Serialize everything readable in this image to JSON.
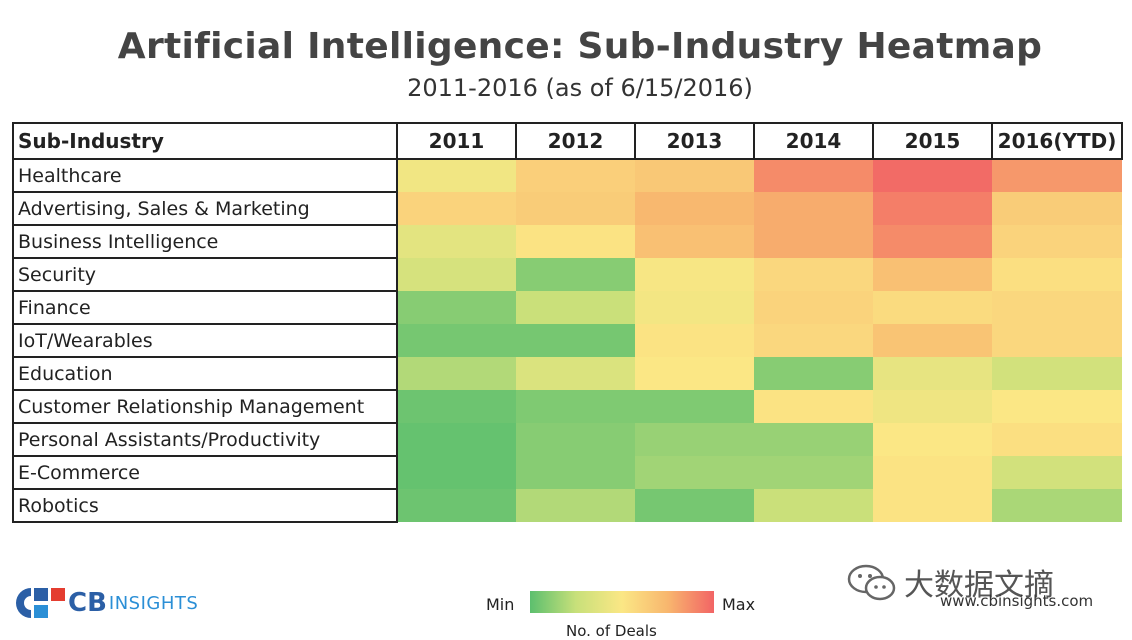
{
  "chart_data": {
    "type": "heatmap",
    "title": "Artificial Intelligence: Sub-Industry Heatmap",
    "subtitle": "2011-2016 (as of 6/15/2016)",
    "row_header": "Sub-Industry",
    "columns": [
      "2011",
      "2012",
      "2013",
      "2014",
      "2015",
      "2016(YTD)"
    ],
    "rows": [
      "Healthcare",
      "Advertising, Sales & Marketing",
      "Business Intelligence",
      "Security",
      "Finance",
      "IoT/Wearables",
      "Education",
      "Customer Relationship Management",
      "Personal Assistants/Productivity",
      "E-Commerce",
      "Robotics"
    ],
    "values": [
      [
        0.45,
        0.62,
        0.66,
        0.88,
        0.98,
        0.84
      ],
      [
        0.6,
        0.64,
        0.74,
        0.78,
        0.92,
        0.64
      ],
      [
        0.38,
        0.52,
        0.7,
        0.78,
        0.88,
        0.6
      ],
      [
        0.32,
        0.1,
        0.48,
        0.58,
        0.7,
        0.54
      ],
      [
        0.1,
        0.26,
        0.46,
        0.6,
        0.56,
        0.58
      ],
      [
        0.06,
        0.06,
        0.52,
        0.58,
        0.68,
        0.58
      ],
      [
        0.2,
        0.34,
        0.5,
        0.1,
        0.4,
        0.3
      ],
      [
        0.04,
        0.08,
        0.08,
        0.52,
        0.44,
        0.5
      ],
      [
        0.02,
        0.1,
        0.14,
        0.14,
        0.5,
        0.54
      ],
      [
        0.02,
        0.1,
        0.16,
        0.16,
        0.52,
        0.3
      ],
      [
        0.04,
        0.2,
        0.06,
        0.26,
        0.52,
        0.18
      ]
    ],
    "scale": {
      "min_label": "Min",
      "max_label": "Max",
      "caption": "No. of Deals"
    },
    "colors": [
      "#5cbf6e",
      "#c8e07a",
      "#fbe785",
      "#f8b66e",
      "#f26465"
    ]
  },
  "branding": {
    "logo_cb": "CB",
    "logo_insights": "INSIGHTS",
    "website": "www.cbinsights.com",
    "watermark": "大数据文摘"
  }
}
